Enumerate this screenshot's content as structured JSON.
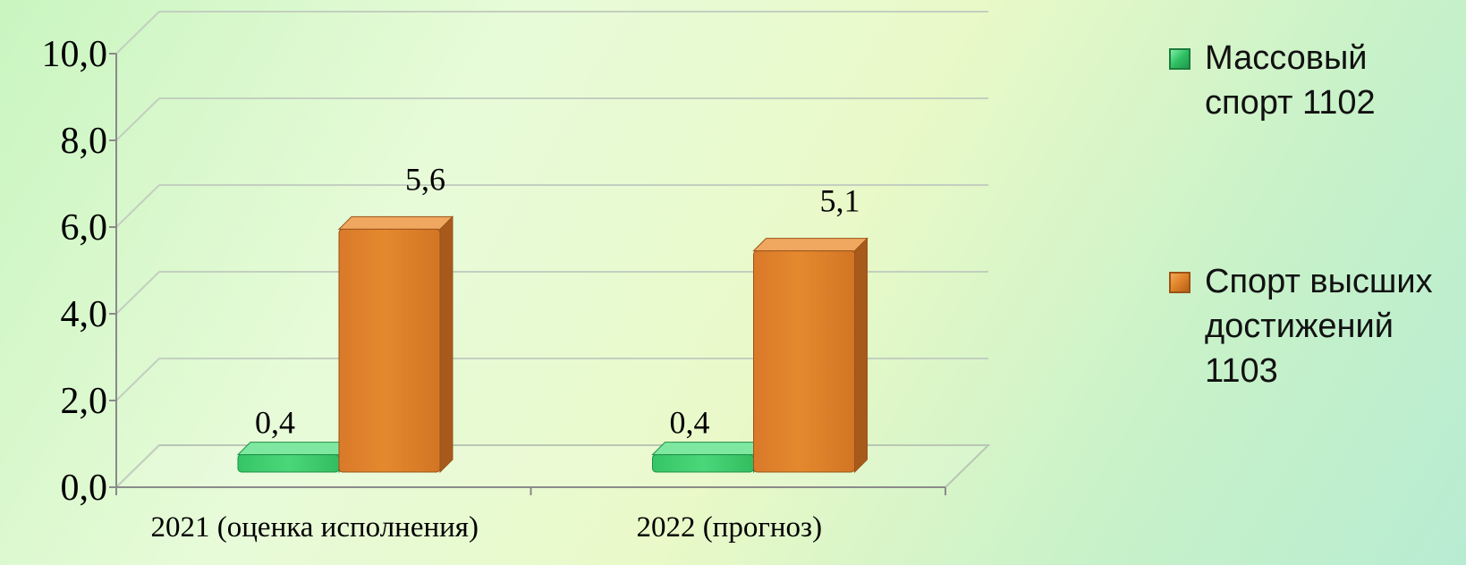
{
  "chart_data": {
    "type": "bar",
    "categories": [
      "2021 (оценка исполнения)",
      "2022 (прогноз)"
    ],
    "series": [
      {
        "name": "Массовый спорт 1102",
        "values": [
          0.4,
          0.4
        ],
        "labels": [
          "0,4",
          "0,4"
        ],
        "color": "#3fcf72"
      },
      {
        "name": "Спорт высших достижений 1103",
        "values": [
          5.6,
          5.1
        ],
        "labels": [
          "5,6",
          "5,1"
        ],
        "color": "#de832c"
      }
    ],
    "ylim": [
      0,
      10
    ],
    "yticks": [
      "0,0",
      "2,0",
      "4,0",
      "6,0",
      "8,0",
      "10,0"
    ],
    "ytick_values": [
      0,
      2,
      4,
      6,
      8,
      10
    ],
    "grid": true,
    "legend_position": "right",
    "style": "3d-column"
  },
  "legend": {
    "items": [
      {
        "lines": [
          "Массовый",
          "спорт 1102"
        ]
      },
      {
        "lines": [
          "Спорт высших",
          "достижений",
          "1103"
        ]
      }
    ]
  }
}
